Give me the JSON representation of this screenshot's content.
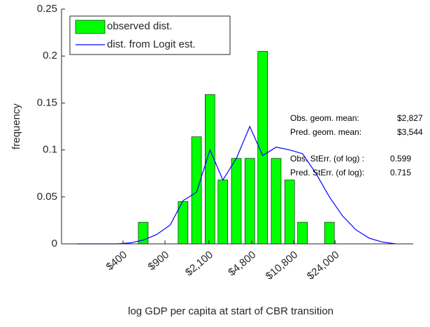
{
  "chart_data": {
    "type": "bar",
    "xlabel": "log GDP per capita at start of CBR transition",
    "ylabel": "frequency",
    "x": [
      5.1,
      5.36,
      5.61,
      5.87,
      6.13,
      6.38,
      6.64,
      6.9,
      7.15,
      7.41,
      7.67,
      7.92,
      8.18,
      8.44,
      8.69,
      8.95,
      9.21,
      9.46,
      9.72,
      9.98,
      10.23,
      10.49,
      10.75,
      11.0,
      11.26
    ],
    "series": [
      {
        "name": "observed dist.",
        "type": "bar",
        "color": "#00ff00",
        "values": [
          0,
          0,
          0,
          0,
          0,
          0.023,
          0,
          0,
          0.045,
          0.114,
          0.159,
          0.068,
          0.091,
          0.091,
          0.205,
          0.091,
          0.068,
          0.023,
          0,
          0.023,
          0,
          0,
          0,
          0,
          0
        ]
      },
      {
        "name": "dist. from Logit est.",
        "type": "line",
        "color": "#0000ff",
        "values": [
          0,
          0,
          0,
          0,
          0.001,
          0.004,
          0.01,
          0.02,
          0.046,
          0.055,
          0.1,
          0.068,
          0.091,
          0.125,
          0.094,
          0.103,
          0.1,
          0.096,
          0.075,
          0.05,
          0.03,
          0.015,
          0.006,
          0.002,
          0
        ]
      }
    ],
    "xlim": [
      4.8,
      11.6
    ],
    "xticks": [
      {
        "value": 5.99,
        "label": "$400"
      },
      {
        "value": 6.8,
        "label": "$900"
      },
      {
        "value": 7.65,
        "label": "$2,100"
      },
      {
        "value": 8.48,
        "label": "$4,800"
      },
      {
        "value": 9.29,
        "label": "$10,800"
      },
      {
        "value": 10.09,
        "label": "$24,000"
      }
    ],
    "ylim": [
      0,
      0.25
    ],
    "yticks": [
      0,
      0.05,
      0.1,
      0.15,
      0.2,
      0.25
    ],
    "grid": false,
    "legend": "upper left",
    "annotations": [
      {
        "label": "Obs. geom. mean:",
        "value": "$2,827"
      },
      {
        "label": "Pred. geom. mean:",
        "value": "$3,544"
      },
      {
        "label": "Obs. StErr. (of log) :",
        "value": "0.599"
      },
      {
        "label": "Pred. StErr. (of log):",
        "value": "0.715"
      }
    ]
  }
}
